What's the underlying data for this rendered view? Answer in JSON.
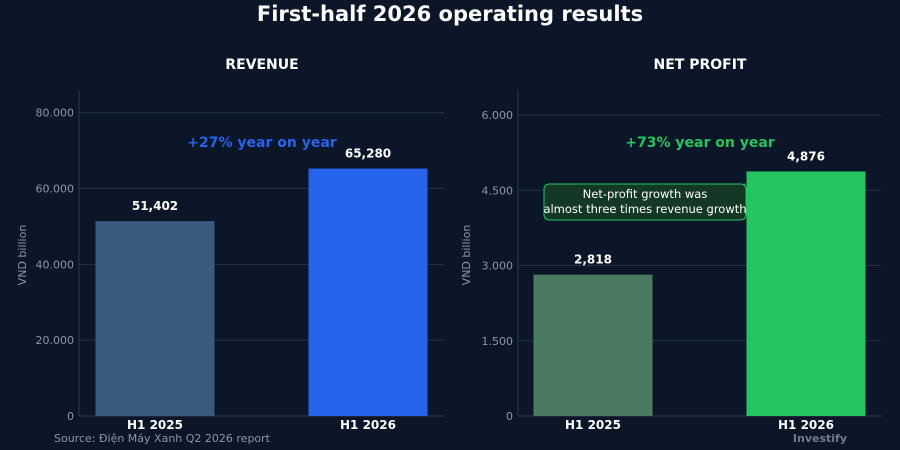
{
  "title": "First-half 2026 operating results",
  "source": "Source: Điện Máy Xanh Q2 2026 report",
  "brand": "Investify",
  "chart_data": [
    {
      "type": "bar",
      "title": "REVENUE",
      "ylabel": "VND billion",
      "xlabel": "",
      "categories": [
        "H1 2025",
        "H1 2026"
      ],
      "values": [
        51402,
        65280
      ],
      "value_labels": [
        "51,402",
        "65,280"
      ],
      "colors": [
        "#3b5a80",
        "#2563eb"
      ],
      "ylim": [
        0,
        86000
      ],
      "yticks": [
        0,
        20000,
        40000,
        60000,
        80000
      ],
      "ytick_labels": [
        "0",
        "20.000",
        "40.000",
        "60.000",
        "80.000"
      ],
      "grid": true,
      "annotation": {
        "text": "+27% year on year",
        "color": "#2563eb"
      }
    },
    {
      "type": "bar",
      "title": "NET PROFIT",
      "ylabel": "VND billion",
      "xlabel": "",
      "categories": [
        "H1 2025",
        "H1 2026"
      ],
      "values": [
        2818,
        4876
      ],
      "value_labels": [
        "2,818",
        "4,876"
      ],
      "colors": [
        "#4a7a5f",
        "#22c55e"
      ],
      "ylim": [
        0,
        6500
      ],
      "yticks": [
        0,
        1500,
        3000,
        4500,
        6000
      ],
      "ytick_labels": [
        "0",
        "1.500",
        "3.000",
        "4.500",
        "6.000"
      ],
      "grid": true,
      "annotation": {
        "text": "+73% year on year",
        "color": "#22c55e"
      },
      "callout": {
        "lines": [
          "Net-profit growth was",
          "almost three times revenue growth"
        ]
      }
    }
  ]
}
